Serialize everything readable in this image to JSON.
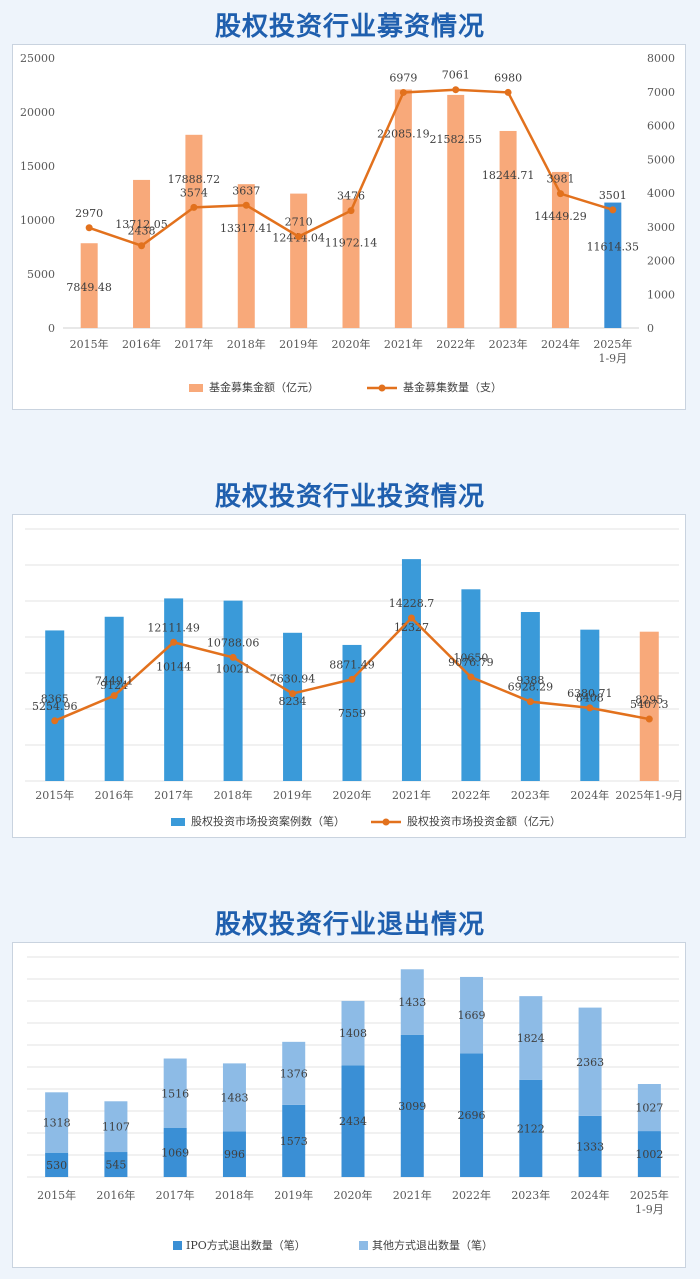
{
  "charts": [
    {
      "title": "股权投资行业募资情况",
      "chart_data": {
        "type": "bar",
        "categories": [
          "2015年",
          "2016年",
          "2017年",
          "2018年",
          "2019年",
          "2020年",
          "2021年",
          "2022年",
          "2023年",
          "2024年",
          "2025年\n1-9月"
        ],
        "series": [
          {
            "name": "基金募集金额（亿元）",
            "type": "bar",
            "axis": "left",
            "values": [
              7849.48,
              13712.05,
              17888.72,
              13317.41,
              12444.04,
              11972.14,
              22085.19,
              21582.55,
              18244.71,
              14449.29,
              11614.35
            ]
          },
          {
            "name": "基金募集数量（支）",
            "type": "line",
            "axis": "right",
            "values": [
              2970,
              2438,
              3574,
              3637,
              2710,
              3476,
              6979,
              7061,
              6980,
              3981,
              3501
            ]
          }
        ],
        "yticks_left": [
          0,
          5000,
          10000,
          15000,
          20000,
          25000
        ],
        "yticks_right": [
          0,
          1000,
          2000,
          3000,
          4000,
          5000,
          6000,
          7000,
          8000
        ],
        "ylim_left": [
          0,
          25000
        ],
        "ylim_right": [
          0,
          8000
        ],
        "colors": {
          "bar": "#f8a97a",
          "bar_highlight": "#3a8fd5",
          "line": "#e2711d"
        },
        "highlight_index": 10,
        "legend_position": "bottom"
      }
    },
    {
      "title": "股权投资行业投资情况",
      "chart_data": {
        "type": "bar",
        "categories": [
          "2015年",
          "2016年",
          "2017年",
          "2018年",
          "2019年",
          "2020年",
          "2021年",
          "2022年",
          "2023年",
          "2024年",
          "2025年1-9月"
        ],
        "series": [
          {
            "name": "股权投资市场投资案例数（笔）",
            "type": "bar",
            "values": [
              8365,
              9124,
              10144,
              10021,
              8234,
              7559,
              12327,
              10650,
              9388,
              8408,
              8295
            ]
          },
          {
            "name": "股权投资市场投资金额（亿元）",
            "type": "line",
            "values": [
              5254.96,
              7449.1,
              12111.49,
              10788.06,
              7630.94,
              8871.49,
              14228.7,
              9076.79,
              6928.29,
              6380.71,
              5407.3
            ]
          }
        ],
        "ylim_bar": [
          0,
          14000
        ],
        "ylim_line": [
          0,
          22000
        ],
        "colors": {
          "bar": "#3a9ad9",
          "bar_highlight": "#f8a97a",
          "line": "#e2711d"
        },
        "highlight_index": 10,
        "legend_position": "bottom"
      }
    },
    {
      "title": "股权投资行业退出情况",
      "chart_data": {
        "type": "bar",
        "stacked": true,
        "categories": [
          "2015年",
          "2016年",
          "2017年",
          "2018年",
          "2019年",
          "2020年",
          "2021年",
          "2022年",
          "2023年",
          "2024年",
          "2025年\n1-9月"
        ],
        "series": [
          {
            "name": "IPO方式退出数量（笔）",
            "values": [
              530,
              545,
              1069,
              996,
              1573,
              2434,
              3099,
              2696,
              2122,
              1333,
              1002
            ]
          },
          {
            "name": "其他方式退出数量（笔）",
            "values": [
              1318,
              1107,
              1516,
              1483,
              1376,
              1408,
              1433,
              1669,
              1824,
              2363,
              1027
            ]
          }
        ],
        "ylim": [
          0,
          4800
        ],
        "colors": {
          "ipo": "#3a8fd5",
          "other": "#8dbbe6"
        },
        "legend_position": "bottom"
      }
    }
  ]
}
